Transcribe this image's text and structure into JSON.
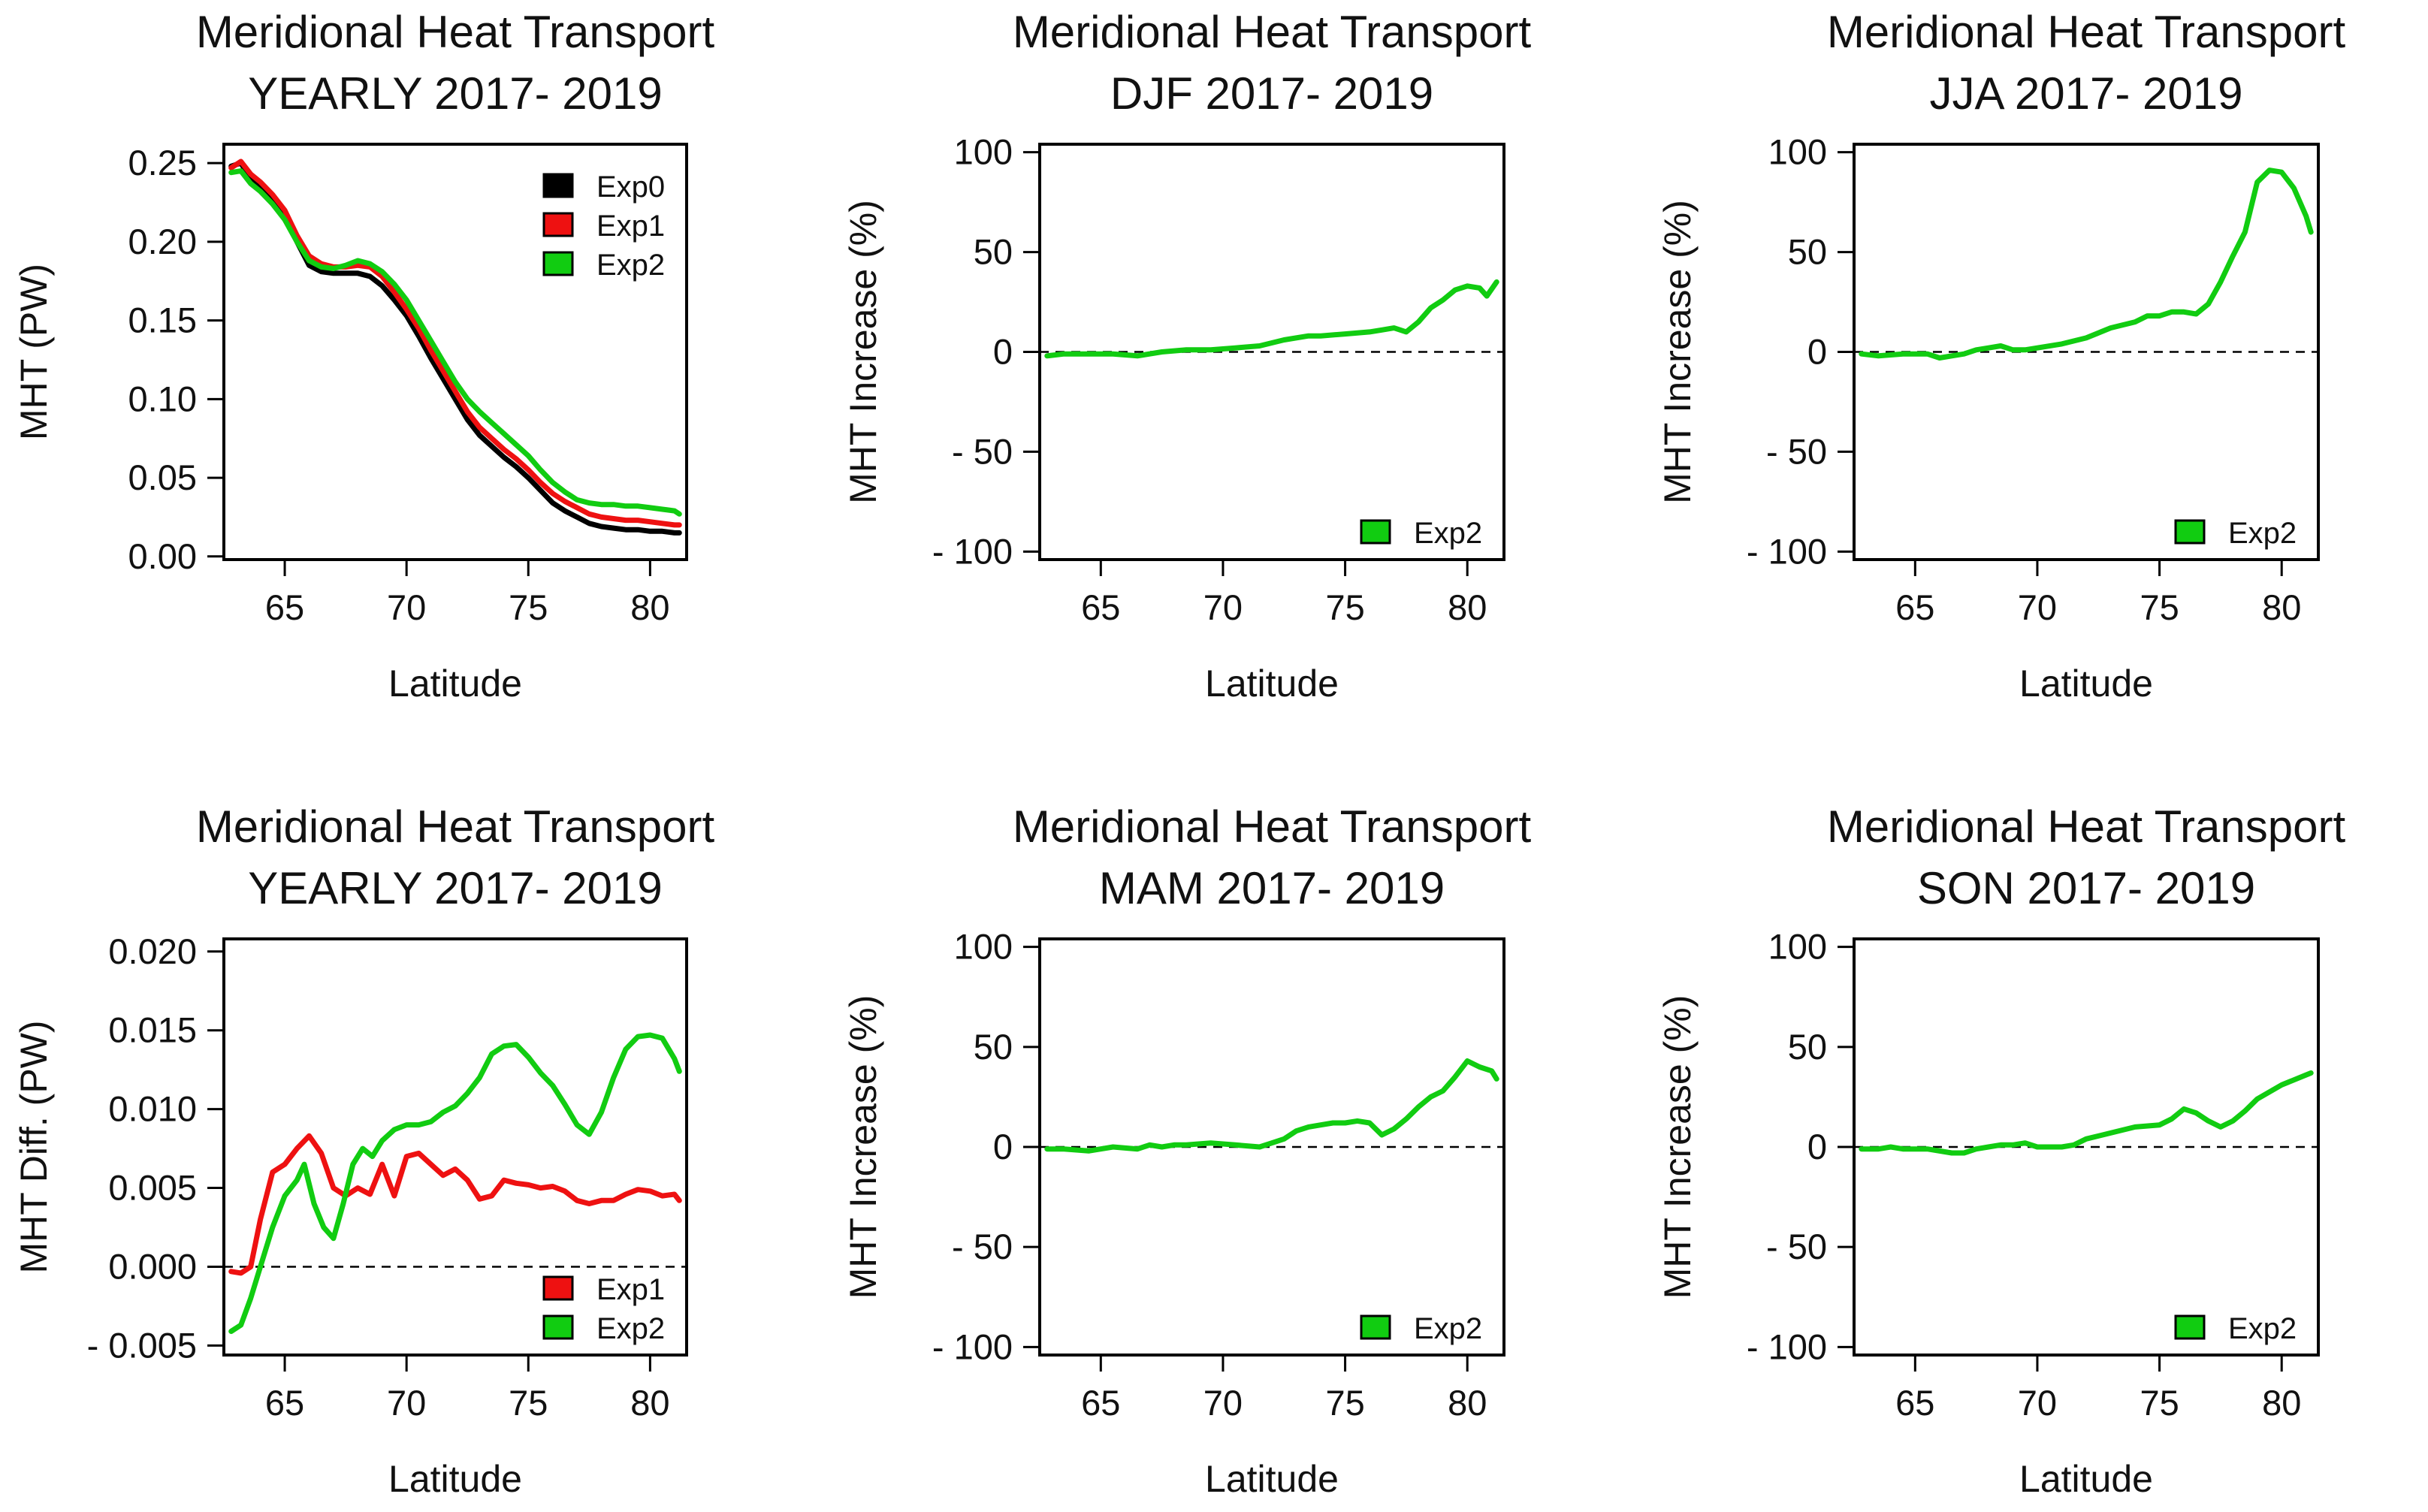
{
  "colors": {
    "Exp0": "#000000",
    "Exp1": "#ee1111",
    "Exp2": "#11cc11"
  },
  "chart_data": [
    {
      "type": "line",
      "title": [
        "Meridional Heat Transport",
        "YEARLY 2017- 2019"
      ],
      "xlabel": "Latitude",
      "ylabel": "MHT (PW)",
      "xlim": [
        62.5,
        81.5
      ],
      "ylim": [
        -0.002,
        0.262
      ],
      "xticks": [
        65,
        70,
        75,
        80
      ],
      "xtick_labels": [
        "65",
        "70",
        "75",
        "80"
      ],
      "yticks": [
        0,
        0.05,
        0.1,
        0.15,
        0.2,
        0.25
      ],
      "ytick_labels": [
        "0.00",
        "0.05",
        "0.10",
        "0.15",
        "0.20",
        "0.25"
      ],
      "zero_line": false,
      "legend": "top-right",
      "series": [
        {
          "name": "Exp0",
          "color_key": "Exp0",
          "x": [
            62.8,
            63.2,
            63.6,
            64,
            64.5,
            65,
            65.5,
            66,
            66.5,
            67,
            67.5,
            68,
            68.5,
            69,
            69.5,
            70,
            70.5,
            71,
            71.5,
            72,
            72.5,
            73,
            73.5,
            74,
            74.5,
            75,
            75.5,
            76,
            76.5,
            77,
            77.5,
            78,
            78.5,
            79,
            79.5,
            80,
            80.5,
            81,
            81.2
          ],
          "y": [
            0.248,
            0.25,
            0.24,
            0.235,
            0.227,
            0.217,
            0.2,
            0.185,
            0.181,
            0.18,
            0.18,
            0.18,
            0.178,
            0.172,
            0.163,
            0.153,
            0.14,
            0.126,
            0.113,
            0.1,
            0.087,
            0.077,
            0.07,
            0.063,
            0.057,
            0.05,
            0.042,
            0.034,
            0.029,
            0.025,
            0.021,
            0.019,
            0.018,
            0.017,
            0.017,
            0.016,
            0.016,
            0.015,
            0.015
          ]
        },
        {
          "name": "Exp1",
          "color_key": "Exp1",
          "x": [
            62.8,
            63.2,
            63.6,
            64,
            64.5,
            65,
            65.5,
            66,
            66.5,
            67,
            67.5,
            68,
            68.5,
            69,
            69.5,
            70,
            70.5,
            71,
            71.5,
            72,
            72.5,
            73,
            73.5,
            74,
            74.5,
            75,
            75.5,
            76,
            76.5,
            77,
            77.5,
            78,
            78.5,
            79,
            79.5,
            80,
            80.5,
            81,
            81.2
          ],
          "y": [
            0.247,
            0.251,
            0.243,
            0.238,
            0.23,
            0.22,
            0.204,
            0.191,
            0.186,
            0.184,
            0.184,
            0.185,
            0.184,
            0.178,
            0.168,
            0.157,
            0.145,
            0.131,
            0.118,
            0.105,
            0.092,
            0.082,
            0.075,
            0.068,
            0.062,
            0.055,
            0.047,
            0.04,
            0.035,
            0.031,
            0.027,
            0.025,
            0.024,
            0.023,
            0.023,
            0.022,
            0.021,
            0.02,
            0.02
          ]
        },
        {
          "name": "Exp2",
          "color_key": "Exp2",
          "x": [
            62.8,
            63.2,
            63.6,
            64,
            64.5,
            65,
            65.5,
            66,
            66.5,
            67,
            67.5,
            68,
            68.5,
            69,
            69.5,
            70,
            70.5,
            71,
            71.5,
            72,
            72.5,
            73,
            73.5,
            74,
            74.5,
            75,
            75.5,
            76,
            76.5,
            77,
            77.5,
            78,
            78.5,
            79,
            79.5,
            80,
            80.5,
            81,
            81.2
          ],
          "y": [
            0.244,
            0.245,
            0.237,
            0.232,
            0.224,
            0.214,
            0.2,
            0.188,
            0.184,
            0.183,
            0.185,
            0.188,
            0.186,
            0.181,
            0.173,
            0.163,
            0.15,
            0.137,
            0.124,
            0.111,
            0.1,
            0.092,
            0.085,
            0.078,
            0.071,
            0.064,
            0.055,
            0.047,
            0.041,
            0.036,
            0.034,
            0.033,
            0.033,
            0.032,
            0.032,
            0.031,
            0.03,
            0.029,
            0.027
          ]
        }
      ]
    },
    {
      "type": "line",
      "title": [
        "Meridional Heat Transport",
        "DJF 2017- 2019"
      ],
      "xlabel": "Latitude",
      "ylabel": "MHT Increase (%)",
      "xlim": [
        62.5,
        81.5
      ],
      "ylim": [
        -104,
        104
      ],
      "xticks": [
        65,
        70,
        75,
        80
      ],
      "xtick_labels": [
        "65",
        "70",
        "75",
        "80"
      ],
      "yticks": [
        -100,
        -50,
        0,
        50,
        100
      ],
      "ytick_labels": [
        "- 100",
        "- 50",
        "0",
        "50",
        "100"
      ],
      "zero_line": true,
      "legend": "bottom-right",
      "series": [
        {
          "name": "Exp2",
          "color_key": "Exp2",
          "x": [
            62.8,
            63.5,
            64.5,
            65.5,
            66.5,
            67.5,
            68.5,
            69.5,
            70.5,
            71.5,
            72.5,
            73.5,
            74,
            75,
            76,
            76.5,
            77,
            77.5,
            78,
            78.5,
            79,
            79.5,
            80,
            80.5,
            80.8,
            81.2
          ],
          "y": [
            -2,
            -1,
            -1,
            -1,
            -2,
            0,
            1,
            1,
            2,
            3,
            6,
            8,
            8,
            9,
            10,
            11,
            12,
            10,
            15,
            22,
            26,
            31,
            33,
            32,
            28,
            35
          ]
        }
      ]
    },
    {
      "type": "line",
      "title": [
        "Meridional Heat Transport",
        "JJA 2017- 2019"
      ],
      "xlabel": "Latitude",
      "ylabel": "MHT Increase (%)",
      "xlim": [
        62.5,
        81.5
      ],
      "ylim": [
        -104,
        104
      ],
      "xticks": [
        65,
        70,
        75,
        80
      ],
      "xtick_labels": [
        "65",
        "70",
        "75",
        "80"
      ],
      "yticks": [
        -100,
        -50,
        0,
        50,
        100
      ],
      "ytick_labels": [
        "- 100",
        "- 50",
        "0",
        "50",
        "100"
      ],
      "zero_line": true,
      "legend": "bottom-right",
      "series": [
        {
          "name": "Exp2",
          "color_key": "Exp2",
          "x": [
            62.8,
            63.5,
            64.5,
            65.5,
            66,
            66.5,
            67,
            67.5,
            68,
            68.5,
            69,
            69.5,
            70,
            71,
            72,
            73,
            74,
            74.5,
            75,
            75.5,
            76,
            76.5,
            77,
            77.5,
            78,
            78.5,
            79,
            79.5,
            80,
            80.5,
            81,
            81.2
          ],
          "y": [
            -1,
            -2,
            -1,
            -1,
            -3,
            -2,
            -1,
            1,
            2,
            3,
            1,
            1,
            2,
            4,
            7,
            12,
            15,
            18,
            18,
            20,
            20,
            19,
            24,
            35,
            48,
            60,
            85,
            91,
            90,
            82,
            68,
            60
          ]
        }
      ]
    },
    {
      "type": "line",
      "title": [
        "Meridional Heat Transport",
        "YEARLY 2017- 2019"
      ],
      "xlabel": "Latitude",
      "ylabel": "MHT Diff. (PW)",
      "xlim": [
        62.5,
        81.5
      ],
      "ylim": [
        -0.0056,
        0.0208
      ],
      "xticks": [
        65,
        70,
        75,
        80
      ],
      "xtick_labels": [
        "65",
        "70",
        "75",
        "80"
      ],
      "yticks": [
        -0.005,
        0,
        0.005,
        0.01,
        0.015,
        0.02
      ],
      "ytick_labels": [
        "- 0.005",
        "0.000",
        "0.005",
        "0.010",
        "0.015",
        "0.020"
      ],
      "zero_line": true,
      "legend": "bottom-right",
      "series": [
        {
          "name": "Exp1",
          "color_key": "Exp1",
          "x": [
            62.8,
            63.2,
            63.6,
            64,
            64.5,
            65,
            65.5,
            66,
            66.5,
            67,
            67.5,
            68,
            68.5,
            69,
            69.5,
            70,
            70.5,
            71,
            71.5,
            72,
            72.5,
            73,
            73.5,
            74,
            74.5,
            75,
            75.5,
            76,
            76.5,
            77,
            77.5,
            78,
            78.5,
            79,
            79.5,
            80,
            80.5,
            81,
            81.2
          ],
          "y": [
            -0.0003,
            -0.0004,
            0.0,
            0.003,
            0.006,
            0.0065,
            0.0075,
            0.0083,
            0.0072,
            0.005,
            0.0045,
            0.005,
            0.0046,
            0.0065,
            0.0045,
            0.007,
            0.0072,
            0.0065,
            0.0058,
            0.0062,
            0.0055,
            0.0043,
            0.0045,
            0.0055,
            0.0053,
            0.0052,
            0.005,
            0.0051,
            0.0048,
            0.0042,
            0.004,
            0.0042,
            0.0042,
            0.0046,
            0.0049,
            0.0048,
            0.0045,
            0.0046,
            0.0042
          ]
        },
        {
          "name": "Exp2",
          "color_key": "Exp2",
          "x": [
            62.8,
            63.2,
            63.6,
            64,
            64.5,
            65,
            65.5,
            65.8,
            66.2,
            66.6,
            67,
            67.4,
            67.8,
            68.2,
            68.6,
            69,
            69.5,
            70,
            70.5,
            71,
            71.5,
            72,
            72.5,
            73,
            73.5,
            74,
            74.5,
            75,
            75.5,
            76,
            76.5,
            77,
            77.5,
            78,
            78.5,
            79,
            79.5,
            80,
            80.5,
            81,
            81.2
          ],
          "y": [
            -0.0041,
            -0.0037,
            -0.002,
            0.0,
            0.0025,
            0.0045,
            0.0055,
            0.0065,
            0.004,
            0.0025,
            0.0018,
            0.004,
            0.0065,
            0.0075,
            0.007,
            0.008,
            0.0087,
            0.009,
            0.009,
            0.0092,
            0.0098,
            0.0102,
            0.011,
            0.012,
            0.0135,
            0.014,
            0.0141,
            0.0133,
            0.0123,
            0.0115,
            0.0103,
            0.009,
            0.0084,
            0.0098,
            0.012,
            0.0138,
            0.0146,
            0.0147,
            0.0145,
            0.0132,
            0.0124
          ]
        }
      ]
    },
    {
      "type": "line",
      "title": [
        "Meridional Heat Transport",
        "MAM 2017- 2019"
      ],
      "xlabel": "Latitude",
      "ylabel": "MHT Increase (%)",
      "xlim": [
        62.5,
        81.5
      ],
      "ylim": [
        -104,
        104
      ],
      "xticks": [
        65,
        70,
        75,
        80
      ],
      "xtick_labels": [
        "65",
        "70",
        "75",
        "80"
      ],
      "yticks": [
        -100,
        -50,
        0,
        50,
        100
      ],
      "ytick_labels": [
        "- 100",
        "- 50",
        "0",
        "50",
        "100"
      ],
      "zero_line": true,
      "legend": "bottom-right",
      "series": [
        {
          "name": "Exp2",
          "color_key": "Exp2",
          "x": [
            62.8,
            63.5,
            64.5,
            65.5,
            66.5,
            67,
            67.5,
            68,
            68.5,
            69.5,
            70.5,
            71.5,
            72,
            72.5,
            73,
            73.5,
            74,
            74.5,
            75,
            75.5,
            76,
            76.5,
            77,
            77.5,
            78,
            78.5,
            79,
            79.5,
            80,
            80.5,
            81,
            81.2
          ],
          "y": [
            -1,
            -1,
            -2,
            0,
            -1,
            1,
            0,
            1,
            1,
            2,
            1,
            0,
            2,
            4,
            8,
            10,
            11,
            12,
            12,
            13,
            12,
            6,
            9,
            14,
            20,
            25,
            28,
            35,
            43,
            40,
            38,
            34
          ]
        }
      ]
    },
    {
      "type": "line",
      "title": [
        "Meridional Heat Transport",
        "SON 2017- 2019"
      ],
      "xlabel": "Latitude",
      "ylabel": "MHT Increase (%)",
      "xlim": [
        62.5,
        81.5
      ],
      "ylim": [
        -104,
        104
      ],
      "xticks": [
        65,
        70,
        75,
        80
      ],
      "xtick_labels": [
        "65",
        "70",
        "75",
        "80"
      ],
      "yticks": [
        -100,
        -50,
        0,
        50,
        100
      ],
      "ytick_labels": [
        "- 100",
        "- 50",
        "0",
        "50",
        "100"
      ],
      "zero_line": true,
      "legend": "bottom-right",
      "series": [
        {
          "name": "Exp2",
          "color_key": "Exp2",
          "x": [
            62.8,
            63.5,
            64,
            64.5,
            65.5,
            66.5,
            67,
            67.5,
            68,
            68.5,
            69,
            69.5,
            70,
            70.5,
            71,
            71.5,
            72,
            73,
            74,
            75,
            75.5,
            76,
            76.5,
            77,
            77.5,
            78,
            78.5,
            79,
            80,
            81,
            81.2
          ],
          "y": [
            -1,
            -1,
            0,
            -1,
            -1,
            -3,
            -3,
            -1,
            0,
            1,
            1,
            2,
            0,
            0,
            0,
            1,
            4,
            7,
            10,
            11,
            14,
            19,
            17,
            13,
            10,
            13,
            18,
            24,
            31,
            36,
            37
          ]
        }
      ]
    }
  ]
}
